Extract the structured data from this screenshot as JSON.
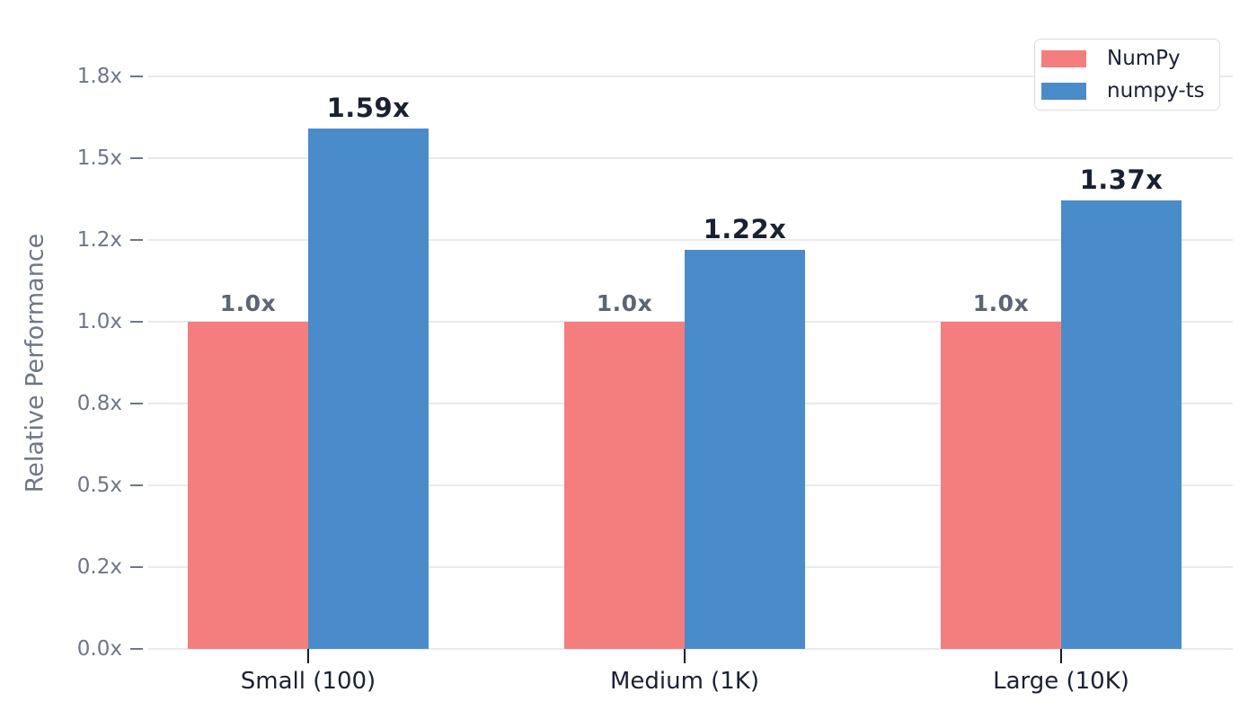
{
  "chart_data": {
    "type": "bar",
    "title": "",
    "ylabel": "Relative Performance",
    "xlabel": "",
    "categories": [
      "Small (100)",
      "Medium (1K)",
      "Large (10K)"
    ],
    "series": [
      {
        "name": "NumPy",
        "color": "#F47E7E",
        "values": [
          1.0,
          1.0,
          1.0
        ],
        "value_labels": [
          "1.0x",
          "1.0x",
          "1.0x"
        ],
        "label_color": "#5C6575"
      },
      {
        "name": "numpy-ts",
        "color": "#4A8BC9",
        "values": [
          1.59,
          1.22,
          1.37
        ],
        "value_labels": [
          "1.59x",
          "1.22x",
          "1.37x"
        ],
        "label_color": "#1A2133"
      }
    ],
    "yticks": [
      {
        "value": 0.0,
        "label": "0.0x"
      },
      {
        "value": 0.25,
        "label": "0.2x"
      },
      {
        "value": 0.5,
        "label": "0.5x"
      },
      {
        "value": 0.75,
        "label": "0.8x"
      },
      {
        "value": 1.0,
        "label": "1.0x"
      },
      {
        "value": 1.25,
        "label": "1.2x"
      },
      {
        "value": 1.5,
        "label": "1.5x"
      },
      {
        "value": 1.75,
        "label": "1.8x"
      }
    ],
    "ylim": [
      0,
      1.87
    ],
    "grid": true,
    "legend_position": "upper right",
    "legend": [
      "NumPy",
      "numpy-ts"
    ]
  },
  "colors": {
    "background": "#FFFFFF",
    "grid": "#E9EAEF",
    "ytick_dash": "#6E7686",
    "ytick_label": "#6E7686",
    "axis_label": "#6E7686",
    "xtick_dash": "#15192A",
    "category_label": "#1A2133",
    "legend_text": "#1A2133",
    "legend_border": "#DBDDE3"
  }
}
